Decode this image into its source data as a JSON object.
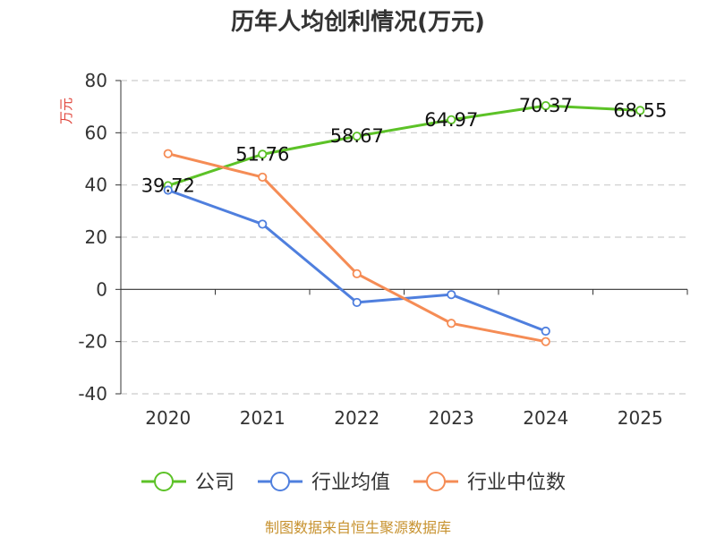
{
  "chart_data": {
    "type": "line",
    "title": "历年人均创利情况(万元)",
    "ylabel": "万元",
    "xlabel": "",
    "categories": [
      "2020",
      "2021",
      "2022",
      "2023",
      "2024",
      "2025"
    ],
    "ylim": [
      -40,
      80
    ],
    "yticks": [
      -40,
      -20,
      0,
      20,
      40,
      60,
      80
    ],
    "grid": true,
    "legend_position": "bottom",
    "series": [
      {
        "name": "公司",
        "color": "#5cc227",
        "values": [
          39.72,
          51.76,
          58.67,
          64.97,
          70.37,
          68.55
        ],
        "data_labels": [
          "39.72",
          "51.76",
          "58.67",
          "64.97",
          "70.37",
          "68.55"
        ]
      },
      {
        "name": "行业均值",
        "color": "#4f7fde",
        "values": [
          38,
          25,
          -5,
          -2,
          -16,
          null
        ],
        "data_labels": []
      },
      {
        "name": "行业中位数",
        "color": "#f58c55",
        "values": [
          52,
          43,
          6,
          -13,
          -20,
          null
        ],
        "data_labels": []
      }
    ],
    "source": "制图数据来自恒生聚源数据库"
  }
}
